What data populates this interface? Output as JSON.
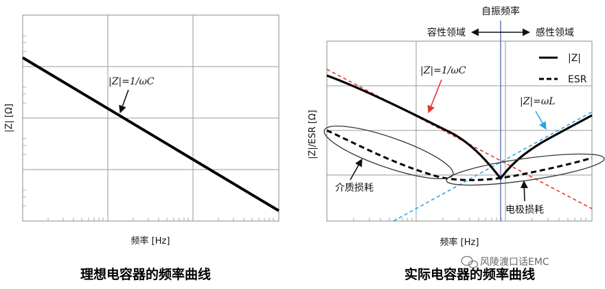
{
  "left_chart": {
    "ylabel": "|Z|  [Ω]",
    "xlabel": "频率 [Hz]",
    "annotation": "|Z|=1/ωC",
    "caption": "理想电容器的频率曲线"
  },
  "right_chart": {
    "ylabel": "|Z|/ESR [Ω]",
    "xlabel": "频率 [Hz]",
    "top_label": "自振频率",
    "capacitive_label": "容性领域",
    "inductive_label": "感性领域",
    "legend": {
      "z_label": "|Z|",
      "esr_label": "ESR"
    },
    "annot_c": "|Z|=1/ωC",
    "annot_l": "|Z|=ωL",
    "dielectric_loss": "介质损耗",
    "electrode_loss": "电极损耗",
    "caption": "实际电容器的频率曲线"
  },
  "watermark": {
    "text": "风陵渡口话EMC",
    "icon": "wechat-icon"
  },
  "colors": {
    "red_line": "#e8352f",
    "blue_line": "#2aa3e0",
    "srf_line": "#5a6fb0"
  }
}
